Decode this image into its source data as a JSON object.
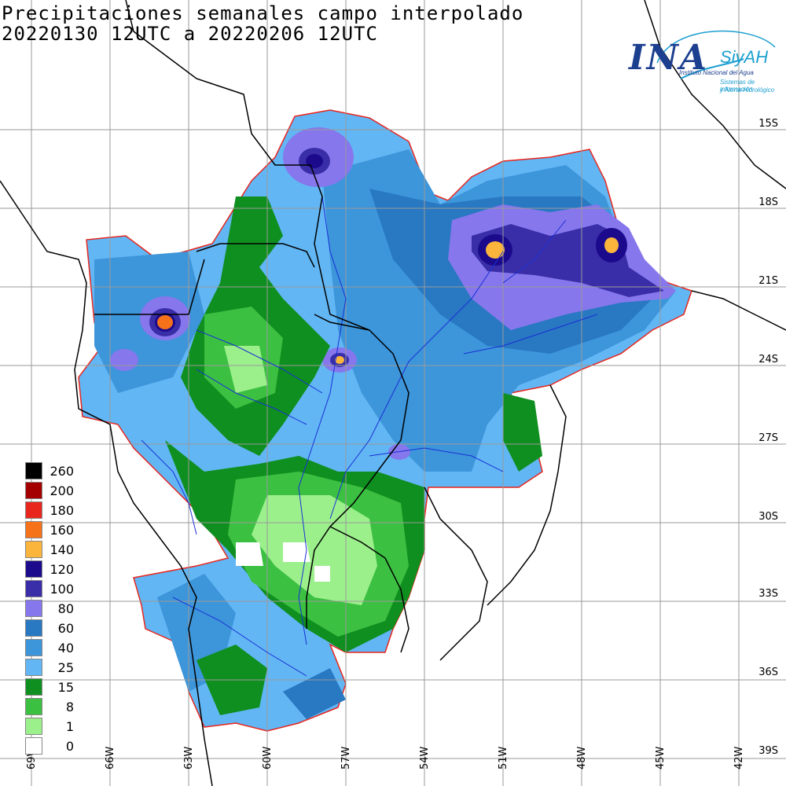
{
  "title": {
    "line1": "Precipitaciones semanales campo interpolado",
    "line2": "20220130 12UTC a 20220206 12UTC"
  },
  "logo": {
    "ina": "INA",
    "siyah": "SiyAH",
    "sub1": "Instituto Nacional del Agua",
    "sub2": "Sistemas de información",
    "sub3": "y Alerta Hidrológico"
  },
  "lat_labels": [
    "15S",
    "18S",
    "21S",
    "24S",
    "27S",
    "30S",
    "33S",
    "36S",
    "39S"
  ],
  "lon_labels": [
    "69W",
    "66W",
    "63W",
    "60W",
    "57W",
    "54W",
    "51W",
    "48W",
    "45W",
    "42W"
  ],
  "legend": [
    {
      "label": "260",
      "color": "#000000"
    },
    {
      "label": "200",
      "color": "#a50000"
    },
    {
      "label": "180",
      "color": "#e8261d"
    },
    {
      "label": "160",
      "color": "#f5721a"
    },
    {
      "label": "140",
      "color": "#fbb43c"
    },
    {
      "label": "120",
      "color": "#1b0a8c"
    },
    {
      "label": "100",
      "color": "#3a2ea8"
    },
    {
      "label": "80",
      "color": "#8677ec"
    },
    {
      "label": "60",
      "color": "#2878c2"
    },
    {
      "label": "40",
      "color": "#3d95da"
    },
    {
      "label": "25",
      "color": "#62b6f4"
    },
    {
      "label": "15",
      "color": "#0f8f1f"
    },
    {
      "label": "8",
      "color": "#3cc042"
    },
    {
      "label": "1",
      "color": "#9cf08c"
    },
    {
      "label": "0",
      "color": "#ffffff"
    }
  ]
}
